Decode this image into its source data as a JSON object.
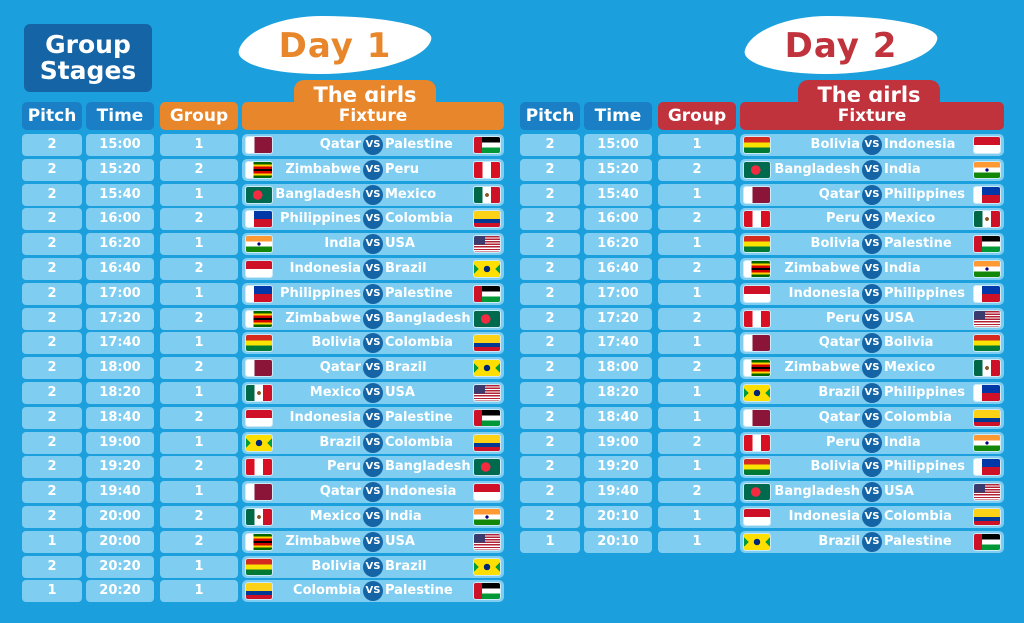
{
  "title": {
    "line1": "Group",
    "line2": "Stages"
  },
  "headers": {
    "pitch": "Pitch",
    "time": "Time",
    "group": "Group",
    "fixture": "Fixture"
  },
  "vs_label": "VS",
  "colors": {
    "background": "#1ba0dd",
    "day1_accent": "#e8862b",
    "day2_accent": "#c0323c",
    "cell": "#7fcdf0",
    "dark_blue": "#1565a6"
  },
  "days": [
    {
      "name": "Day 1",
      "subtitle": "The girls",
      "matches": [
        {
          "pitch": "2",
          "time": "15:00",
          "group": "1",
          "home": "Qatar",
          "away": "Palestine"
        },
        {
          "pitch": "2",
          "time": "15:20",
          "group": "2",
          "home": "Zimbabwe",
          "away": "Peru"
        },
        {
          "pitch": "2",
          "time": "15:40",
          "group": "1",
          "home": "Bangladesh",
          "away": "Mexico"
        },
        {
          "pitch": "2",
          "time": "16:00",
          "group": "2",
          "home": "Philippines",
          "away": "Colombia"
        },
        {
          "pitch": "2",
          "time": "16:20",
          "group": "1",
          "home": "India",
          "away": "USA"
        },
        {
          "pitch": "2",
          "time": "16:40",
          "group": "2",
          "home": "Indonesia",
          "away": "Brazil"
        },
        {
          "pitch": "2",
          "time": "17:00",
          "group": "1",
          "home": "Philippines",
          "away": "Palestine"
        },
        {
          "pitch": "2",
          "time": "17:20",
          "group": "2",
          "home": "Zimbabwe",
          "away": "Bangladesh"
        },
        {
          "pitch": "2",
          "time": "17:40",
          "group": "1",
          "home": "Bolivia",
          "away": "Colombia"
        },
        {
          "pitch": "2",
          "time": "18:00",
          "group": "2",
          "home": "Qatar",
          "away": "Brazil"
        },
        {
          "pitch": "2",
          "time": "18:20",
          "group": "1",
          "home": "Mexico",
          "away": "USA"
        },
        {
          "pitch": "2",
          "time": "18:40",
          "group": "2",
          "home": "Indonesia",
          "away": "Palestine"
        },
        {
          "pitch": "2",
          "time": "19:00",
          "group": "1",
          "home": "Brazil",
          "away": "Colombia"
        },
        {
          "pitch": "2",
          "time": "19:20",
          "group": "2",
          "home": "Peru",
          "away": "Bangladesh"
        },
        {
          "pitch": "2",
          "time": "19:40",
          "group": "1",
          "home": "Qatar",
          "away": "Indonesia"
        },
        {
          "pitch": "2",
          "time": "20:00",
          "group": "2",
          "home": "Mexico",
          "away": "India"
        },
        {
          "pitch": "1",
          "time": "20:00",
          "group": "2",
          "home": "Zimbabwe",
          "away": "USA"
        },
        {
          "pitch": "2",
          "time": "20:20",
          "group": "1",
          "home": "Bolivia",
          "away": "Brazil"
        },
        {
          "pitch": "1",
          "time": "20:20",
          "group": "1",
          "home": "Colombia",
          "away": "Palestine"
        }
      ]
    },
    {
      "name": "Day 2",
      "subtitle": "The girls",
      "matches": [
        {
          "pitch": "2",
          "time": "15:00",
          "group": "1",
          "home": "Bolivia",
          "away": "Indonesia"
        },
        {
          "pitch": "2",
          "time": "15:20",
          "group": "2",
          "home": "Bangladesh",
          "away": "India"
        },
        {
          "pitch": "2",
          "time": "15:40",
          "group": "1",
          "home": "Qatar",
          "away": "Philippines"
        },
        {
          "pitch": "2",
          "time": "16:00",
          "group": "2",
          "home": "Peru",
          "away": "Mexico"
        },
        {
          "pitch": "2",
          "time": "16:20",
          "group": "1",
          "home": "Bolivia",
          "away": "Palestine"
        },
        {
          "pitch": "2",
          "time": "16:40",
          "group": "2",
          "home": "Zimbabwe",
          "away": "India"
        },
        {
          "pitch": "2",
          "time": "17:00",
          "group": "1",
          "home": "Indonesia",
          "away": "Philippines"
        },
        {
          "pitch": "2",
          "time": "17:20",
          "group": "2",
          "home": "Peru",
          "away": "USA"
        },
        {
          "pitch": "2",
          "time": "17:40",
          "group": "1",
          "home": "Qatar",
          "away": "Bolivia"
        },
        {
          "pitch": "2",
          "time": "18:00",
          "group": "2",
          "home": "Zimbabwe",
          "away": "Mexico"
        },
        {
          "pitch": "2",
          "time": "18:20",
          "group": "1",
          "home": "Brazil",
          "away": "Philippines"
        },
        {
          "pitch": "2",
          "time": "18:40",
          "group": "1",
          "home": "Qatar",
          "away": "Colombia"
        },
        {
          "pitch": "2",
          "time": "19:00",
          "group": "2",
          "home": "Peru",
          "away": "India"
        },
        {
          "pitch": "2",
          "time": "19:20",
          "group": "1",
          "home": "Bolivia",
          "away": "Philippines"
        },
        {
          "pitch": "2",
          "time": "19:40",
          "group": "2",
          "home": "Bangladesh",
          "away": "USA"
        },
        {
          "pitch": "2",
          "time": "20:10",
          "group": "1",
          "home": "Indonesia",
          "away": "Colombia"
        },
        {
          "pitch": "1",
          "time": "20:10",
          "group": "1",
          "home": "Brazil",
          "away": "Palestine"
        }
      ]
    }
  ]
}
